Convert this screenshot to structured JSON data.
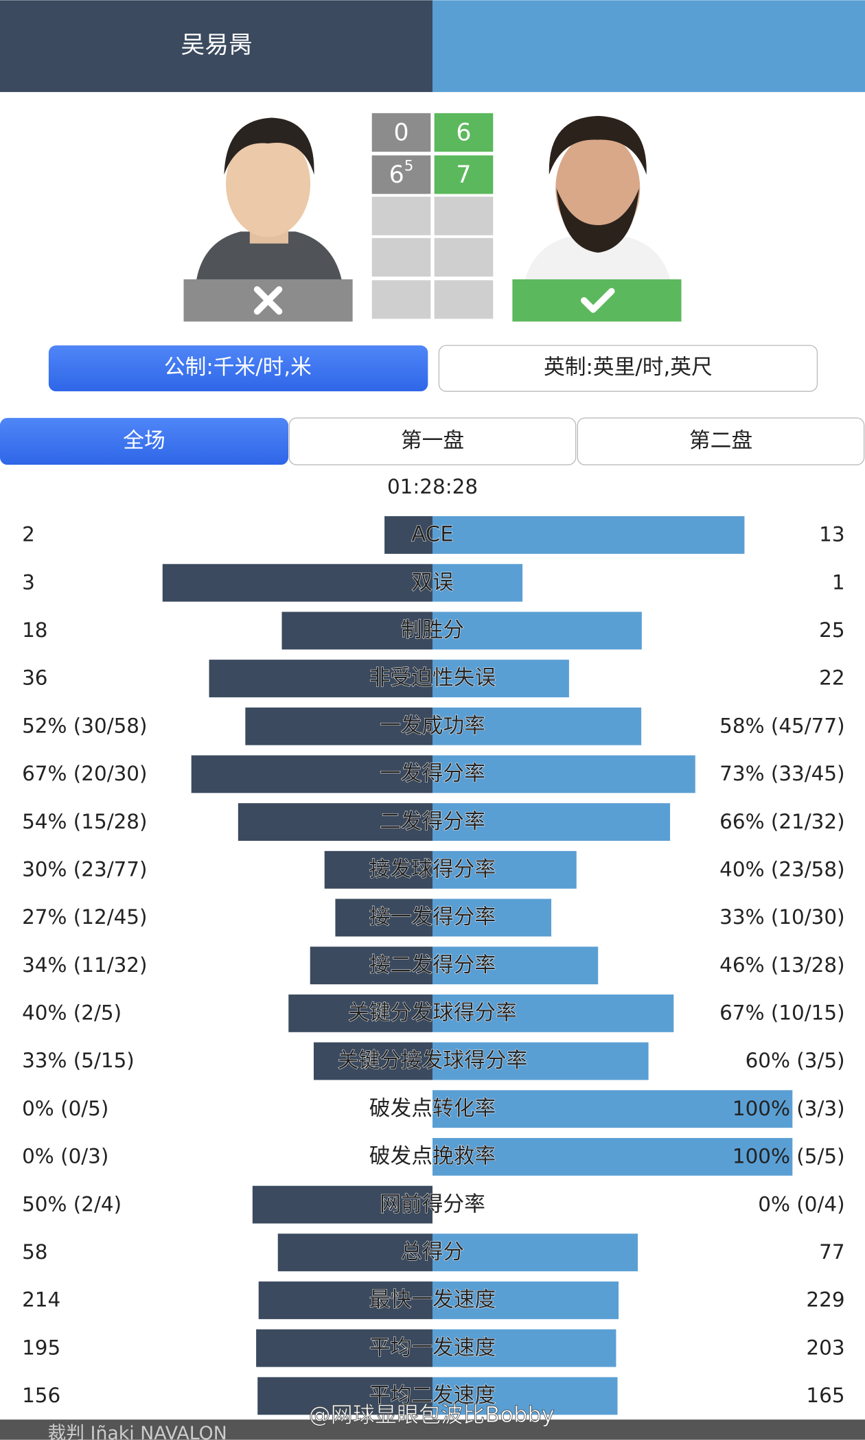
{
  "header": {
    "player1": "吴易昺"
  },
  "score": {
    "player1": [
      {
        "games": 0
      },
      {
        "games": 6,
        "tiebreak": 5
      }
    ],
    "player2": [
      {
        "games": 6
      },
      {
        "games": 7
      }
    ]
  },
  "units": [
    "公制:千米/时,米",
    "英制:英里/时,英尺"
  ],
  "tabs": [
    "全场",
    "第一盘",
    "第二盘"
  ],
  "duration": "01:28:28",
  "stats": [
    {
      "left": "2",
      "label": "ACE",
      "right": "13",
      "values": [
        2,
        13
      ]
    },
    {
      "left": "3",
      "label": "双误",
      "right": "1",
      "values": [
        3,
        1
      ]
    },
    {
      "left": "18",
      "label": "制胜分",
      "right": "25",
      "values": [
        18,
        25
      ]
    },
    {
      "left": "36",
      "label": "非受迫性失误",
      "right": "22",
      "values": [
        36,
        22
      ]
    },
    {
      "left": "52% (30/58)",
      "label": "一发成功率",
      "right": "58% (45/77)",
      "values": [
        52,
        58
      ]
    },
    {
      "left": "67% (20/30)",
      "label": "一发得分率",
      "right": "73% (33/45)",
      "values": [
        67,
        73
      ]
    },
    {
      "left": "54% (15/28)",
      "label": "二发得分率",
      "right": "66% (21/32)",
      "values": [
        54,
        66
      ]
    },
    {
      "left": "30% (23/77)",
      "label": "接发球得分率",
      "right": "40% (23/58)",
      "values": [
        30,
        40
      ]
    },
    {
      "left": "27% (12/45)",
      "label": "接一发得分率",
      "right": "33% (10/30)",
      "values": [
        27,
        33
      ]
    },
    {
      "left": "34% (11/32)",
      "label": "接二发得分率",
      "right": "46% (13/28)",
      "values": [
        34,
        46
      ]
    },
    {
      "left": "40% (2/5)",
      "label": "关键分发球得分率",
      "right": "67% (10/15)",
      "values": [
        40,
        67
      ]
    },
    {
      "left": "33% (5/15)",
      "label": "关键分接发球得分率",
      "right": "60% (3/5)",
      "values": [
        33,
        60
      ]
    },
    {
      "left": "0% (0/5)",
      "label": "破发点转化率",
      "right": "100% (3/3)",
      "values": [
        0,
        100
      ]
    },
    {
      "left": "0% (0/3)",
      "label": "破发点挽救率",
      "right": "100% (5/5)",
      "values": [
        0,
        100
      ]
    },
    {
      "left": "50% (2/4)",
      "label": "网前得分率",
      "right": "0% (0/4)",
      "values": [
        50,
        0
      ]
    },
    {
      "left": "58",
      "label": "总得分",
      "right": "77",
      "values": [
        58,
        77
      ]
    },
    {
      "left": "214",
      "label": "最快一发速度",
      "right": "229",
      "values": [
        214,
        229
      ]
    },
    {
      "left": "195",
      "label": "平均一发速度",
      "right": "203",
      "values": [
        195,
        203
      ]
    },
    {
      "left": "156",
      "label": "平均二发速度",
      "right": "165",
      "values": [
        156,
        165
      ]
    }
  ],
  "footer": "裁判 Iñaki NAVALON",
  "watermark": "@网球显眼包波比Bobby"
}
